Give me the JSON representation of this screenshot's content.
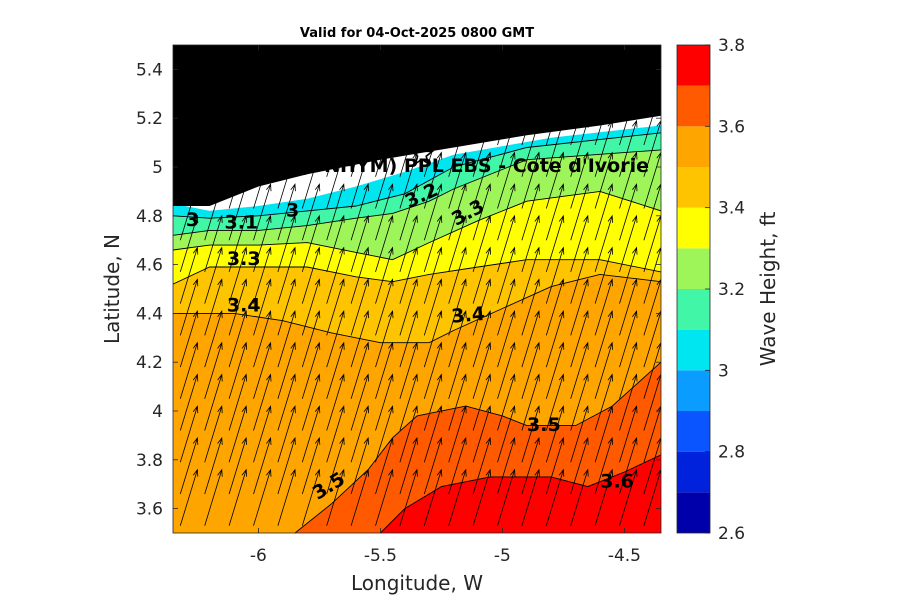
{
  "chart_data": {
    "type": "heatmap",
    "title": "Valid for 04-Oct-2025 0800 GMT",
    "xlabel": "Longitude, W",
    "ylabel": "Latitude, N",
    "xlim": [
      -6.35,
      -4.35
    ],
    "ylim": [
      3.5,
      5.5
    ],
    "x_ticks": [
      -6,
      -5.5,
      -5,
      -4.5
    ],
    "y_ticks": [
      3.6,
      3.8,
      4,
      4.2,
      4.4,
      4.6,
      4.8,
      5,
      5.2,
      5.4
    ],
    "colorbar": {
      "label": "Wave Height, ft",
      "range": [
        2.6,
        3.8
      ],
      "ticks": [
        2.6,
        2.8,
        3,
        3.2,
        3.4,
        3.6,
        3.8
      ],
      "levels": [
        2.6,
        2.7,
        2.8,
        2.9,
        3.0,
        3.1,
        3.2,
        3.3,
        3.4,
        3.5,
        3.6,
        3.7,
        3.8
      ],
      "colors": [
        "#0000aa",
        "#0022dd",
        "#0a55ff",
        "#0a9cff",
        "#00e6f0",
        "#41f7a7",
        "#9ef55a",
        "#ffff00",
        "#ffc400",
        "#ffa500",
        "#ff5a00",
        "#ff0000"
      ]
    },
    "station_label": "(ONHYM) PPL EBS - Cote d'Ivorie",
    "station": {
      "lon": -5.33,
      "lat": 5.05
    },
    "land_color": "#000000",
    "coastline": [
      [
        -6.35,
        4.84
      ],
      [
        -6.2,
        4.84
      ],
      [
        -6.0,
        4.92
      ],
      [
        -5.8,
        4.97
      ],
      [
        -5.5,
        5.03
      ],
      [
        -5.2,
        5.08
      ],
      [
        -4.9,
        5.13
      ],
      [
        -4.6,
        5.17
      ],
      [
        -4.35,
        5.21
      ]
    ],
    "bands": [
      {
        "level": 3.0,
        "boundary": [
          [
            -6.35,
            4.85
          ],
          [
            -6.2,
            4.82
          ],
          [
            -6.0,
            4.84
          ],
          [
            -5.8,
            4.87
          ],
          [
            -5.6,
            4.92
          ],
          [
            -5.4,
            4.98
          ],
          [
            -5.2,
            5.05
          ],
          [
            -4.8,
            5.12
          ],
          [
            -4.35,
            5.17
          ]
        ]
      },
      {
        "level": 3.1,
        "boundary": [
          [
            -6.35,
            4.8
          ],
          [
            -6.2,
            4.79
          ],
          [
            -6.0,
            4.8
          ],
          [
            -5.8,
            4.82
          ],
          [
            -5.6,
            4.84
          ],
          [
            -5.4,
            4.89
          ],
          [
            -5.2,
            5.0
          ],
          [
            -4.9,
            5.08
          ],
          [
            -4.35,
            5.14
          ]
        ]
      },
      {
        "level": 3.2,
        "boundary": [
          [
            -6.35,
            4.72
          ],
          [
            -6.2,
            4.74
          ],
          [
            -6.0,
            4.74
          ],
          [
            -5.8,
            4.76
          ],
          [
            -5.6,
            4.79
          ],
          [
            -5.45,
            4.81
          ],
          [
            -5.3,
            4.86
          ],
          [
            -5.2,
            4.91
          ],
          [
            -4.9,
            5.03
          ],
          [
            -4.35,
            5.07
          ]
        ]
      },
      {
        "level": 3.3,
        "boundary": [
          [
            -6.35,
            4.66
          ],
          [
            -6.2,
            4.68
          ],
          [
            -6.0,
            4.68
          ],
          [
            -5.8,
            4.69
          ],
          [
            -5.6,
            4.65
          ],
          [
            -5.45,
            4.62
          ],
          [
            -5.3,
            4.69
          ],
          [
            -5.1,
            4.78
          ],
          [
            -4.9,
            4.86
          ],
          [
            -4.6,
            4.9
          ],
          [
            -4.35,
            4.82
          ]
        ]
      },
      {
        "level": 3.4,
        "boundary": [
          [
            -6.35,
            4.52
          ],
          [
            -6.2,
            4.59
          ],
          [
            -6.0,
            4.59
          ],
          [
            -5.8,
            4.59
          ],
          [
            -5.6,
            4.55
          ],
          [
            -5.45,
            4.53
          ],
          [
            -5.3,
            4.56
          ],
          [
            -5.1,
            4.59
          ],
          [
            -4.9,
            4.62
          ],
          [
            -4.6,
            4.62
          ],
          [
            -4.35,
            4.57
          ]
        ]
      },
      {
        "level": 3.5,
        "boundary": [
          [
            -6.35,
            4.4
          ],
          [
            -6.1,
            4.4
          ],
          [
            -5.9,
            4.37
          ],
          [
            -5.7,
            4.32
          ],
          [
            -5.5,
            4.28
          ],
          [
            -5.3,
            4.28
          ],
          [
            -5.2,
            4.33
          ],
          [
            -5.0,
            4.42
          ],
          [
            -4.8,
            4.51
          ],
          [
            -4.6,
            4.56
          ],
          [
            -4.35,
            4.53
          ]
        ]
      },
      {
        "level": 3.6,
        "boundary": [
          [
            -5.85,
            3.5
          ],
          [
            -5.7,
            3.62
          ],
          [
            -5.55,
            3.76
          ],
          [
            -5.45,
            3.89
          ],
          [
            -5.35,
            3.98
          ],
          [
            -5.15,
            4.02
          ],
          [
            -5.0,
            3.98
          ],
          [
            -4.9,
            3.94
          ],
          [
            -4.7,
            3.94
          ],
          [
            -4.55,
            4.02
          ],
          [
            -4.35,
            4.2
          ]
        ]
      },
      {
        "level": 3.7,
        "boundary": [
          [
            -5.5,
            3.5
          ],
          [
            -5.4,
            3.6
          ],
          [
            -5.25,
            3.69
          ],
          [
            -5.05,
            3.73
          ],
          [
            -4.8,
            3.73
          ],
          [
            -4.65,
            3.69
          ],
          [
            -4.5,
            3.75
          ],
          [
            -4.35,
            3.82
          ]
        ]
      }
    ],
    "contour_labels": [
      {
        "text": "3",
        "lon": -6.27,
        "lat": 4.78,
        "angle": 0
      },
      {
        "text": "3",
        "lon": -5.86,
        "lat": 4.82,
        "angle": 0
      },
      {
        "text": "3.1",
        "lon": -6.07,
        "lat": 4.77,
        "angle": 0
      },
      {
        "text": "3.2",
        "lon": -5.33,
        "lat": 4.88,
        "angle": -25
      },
      {
        "text": "3.3",
        "lon": -6.06,
        "lat": 4.62,
        "angle": 0
      },
      {
        "text": "3.3",
        "lon": -5.14,
        "lat": 4.81,
        "angle": -28
      },
      {
        "text": "3.4",
        "lon": -6.06,
        "lat": 4.43,
        "angle": 0
      },
      {
        "text": "3.4",
        "lon": -5.14,
        "lat": 4.39,
        "angle": -5
      },
      {
        "text": "3.5",
        "lon": -5.71,
        "lat": 3.69,
        "angle": -32
      },
      {
        "text": "3.5",
        "lon": -4.83,
        "lat": 3.94,
        "angle": 0
      },
      {
        "text": "3.6",
        "lon": -4.53,
        "lat": 3.71,
        "angle": 0
      }
    ],
    "vectors": {
      "direction_deg": 17,
      "length_deg": 0.24,
      "spacing_lon": 0.1,
      "spacing_lat": 0.13
    }
  }
}
